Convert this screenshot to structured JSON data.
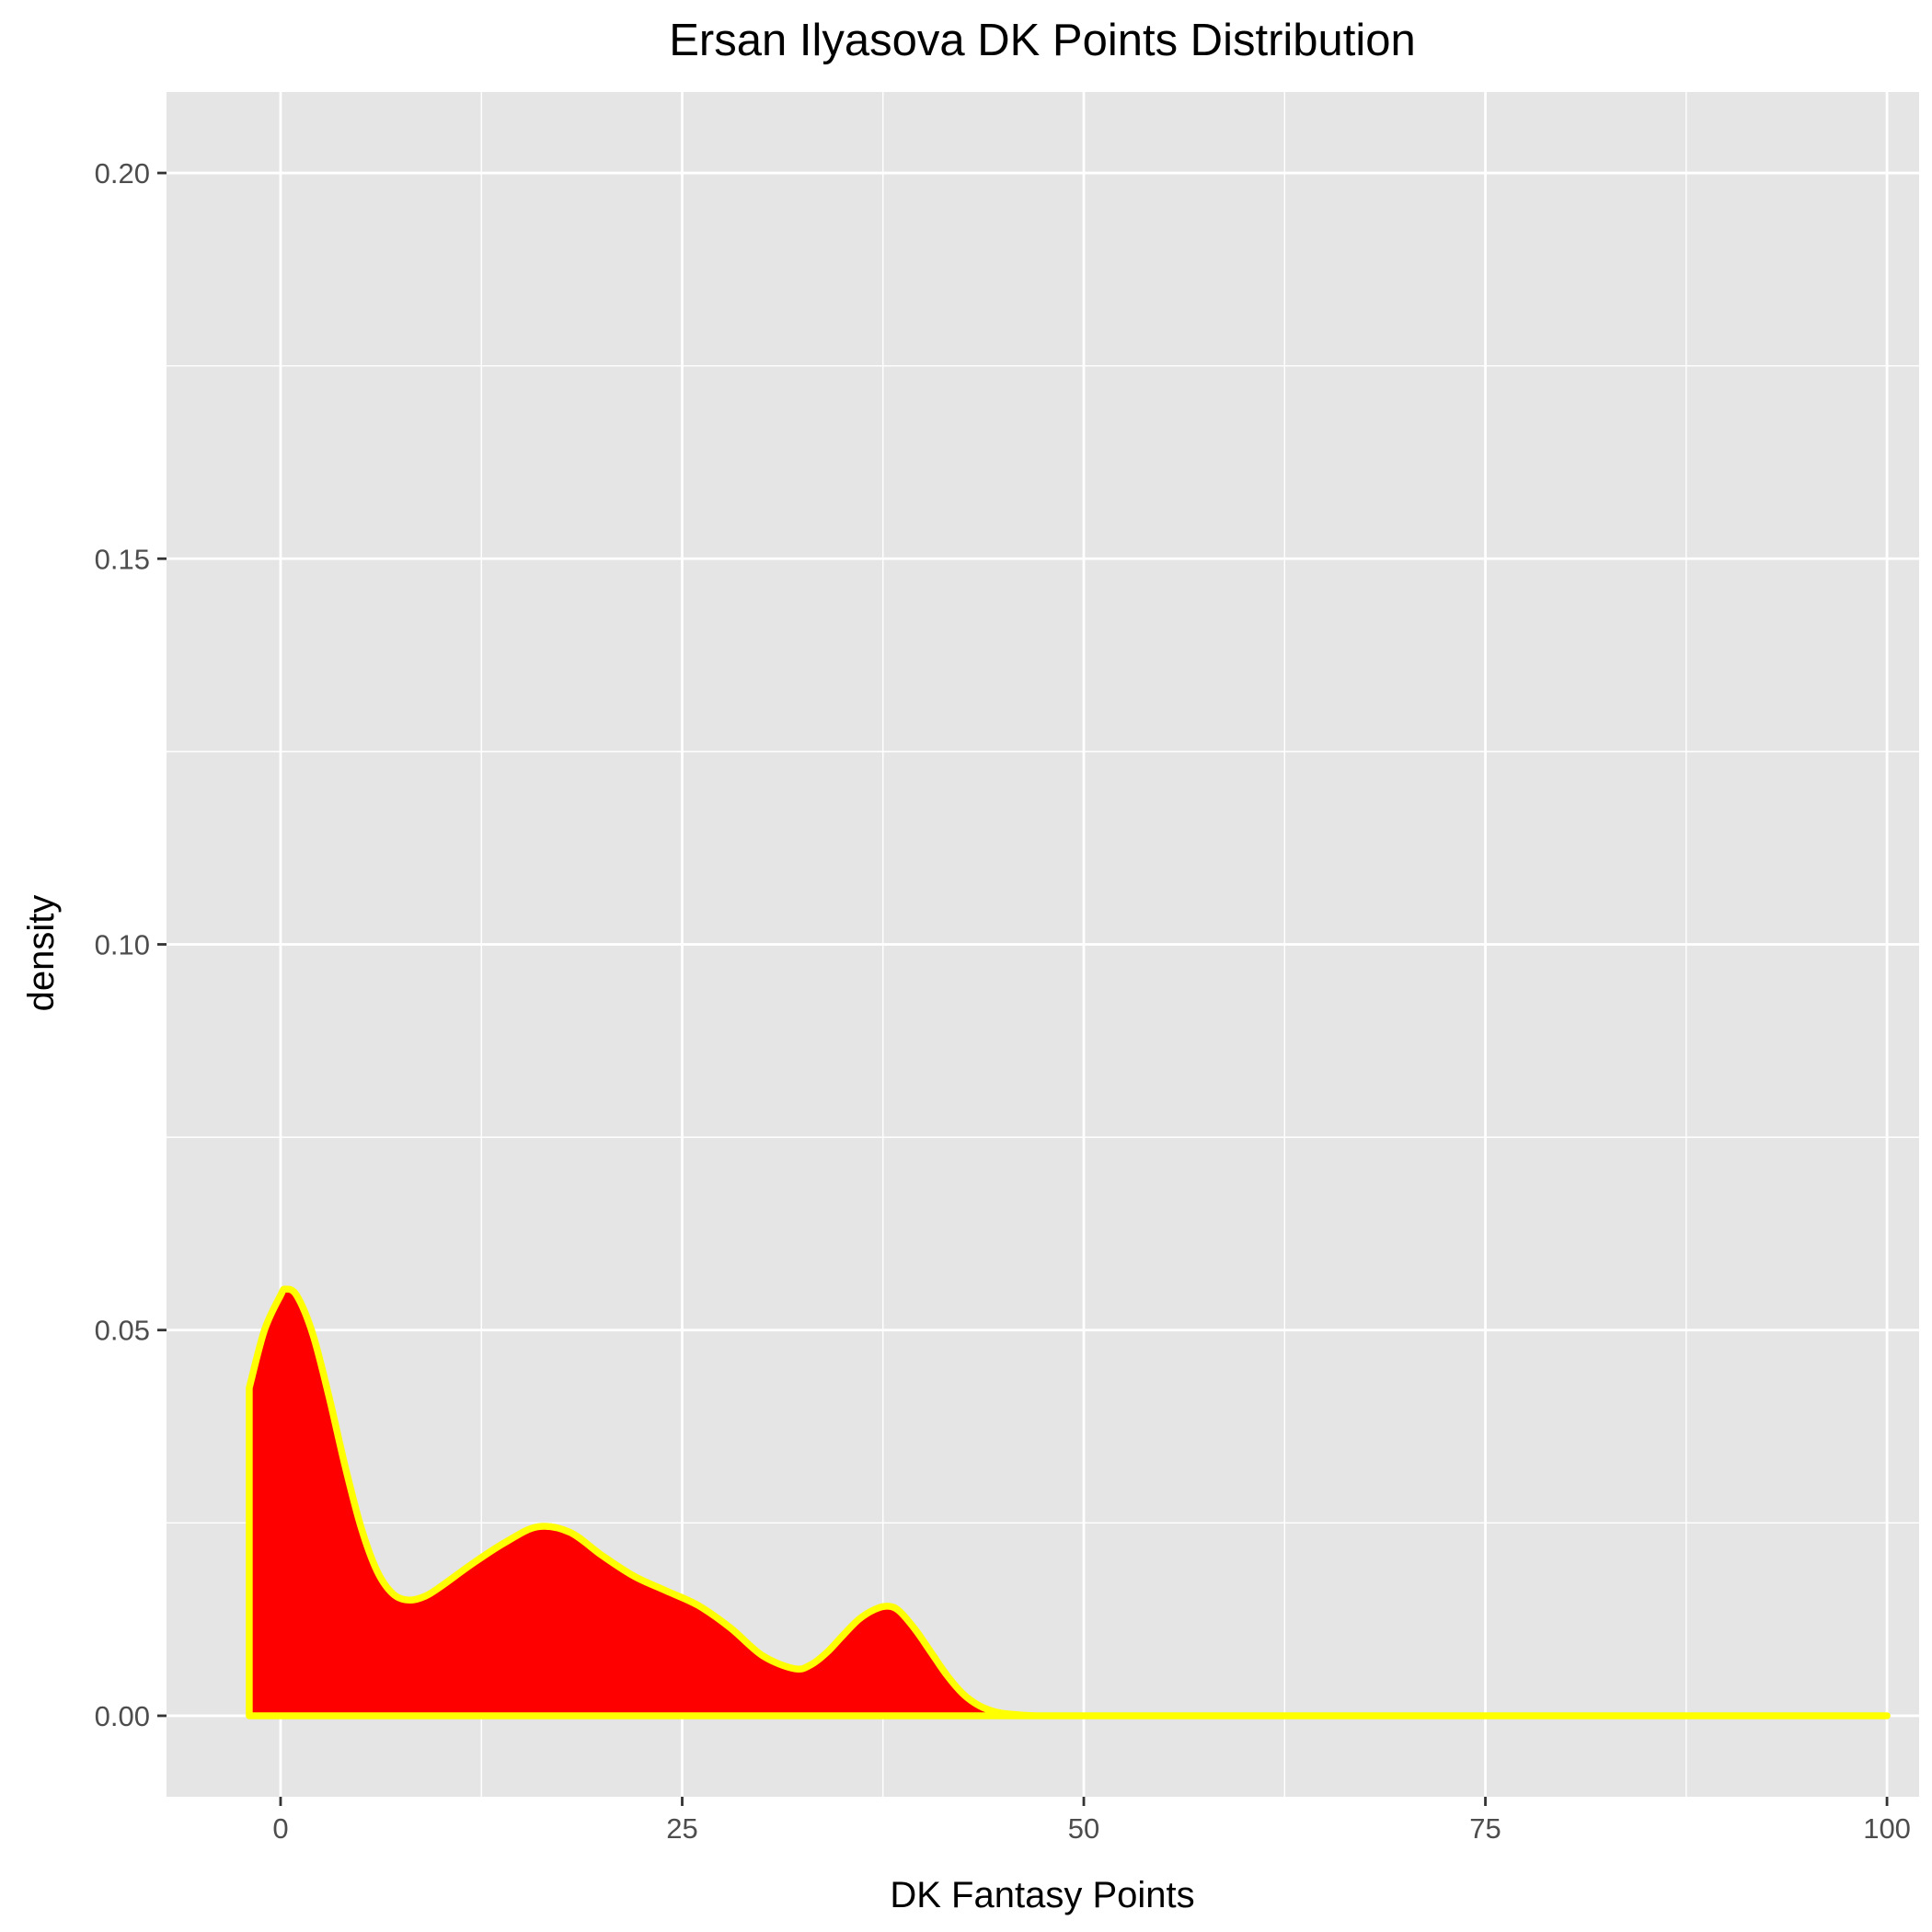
{
  "chart_data": {
    "type": "area",
    "title": "Ersan Ilyasova DK Points Distribution",
    "xlabel": "DK Fantasy Points",
    "ylabel": "density",
    "xlim": [
      -7.1,
      102
    ],
    "ylim": [
      -0.0105,
      0.2105
    ],
    "x_ticks": [
      0,
      25,
      50,
      75,
      100
    ],
    "x_tick_labels": [
      "0",
      "25",
      "50",
      "75",
      "100"
    ],
    "y_ticks": [
      0.0,
      0.05,
      0.1,
      0.15,
      0.2
    ],
    "y_tick_labels": [
      "0.00",
      "0.05",
      "0.10",
      "0.15",
      "0.20"
    ],
    "grid": true,
    "legend": "none",
    "colors": {
      "panel_background": "#e5e5e5",
      "grid": "#ffffff",
      "fill": "#ff0000",
      "outline": "#ffff00"
    },
    "series": [
      {
        "x": [
          -1.95,
          -1,
          0,
          0.3,
          1,
          2,
          3,
          4,
          5,
          6,
          7,
          8,
          9,
          10,
          12,
          14,
          16,
          18,
          20,
          22,
          24,
          26,
          28,
          30,
          32,
          33,
          34,
          35,
          36,
          37,
          37.8,
          38.5,
          39.5,
          40.5,
          41.5,
          42.5,
          43.5,
          44.5,
          45.5,
          47,
          50,
          60,
          75,
          90,
          100
        ],
        "y": [
          0.0425,
          0.05,
          0.0545,
          0.0553,
          0.0545,
          0.0495,
          0.0415,
          0.0325,
          0.0245,
          0.0188,
          0.0158,
          0.015,
          0.0155,
          0.0168,
          0.0198,
          0.0225,
          0.0245,
          0.0238,
          0.0208,
          0.0181,
          0.0162,
          0.0143,
          0.0114,
          0.0078,
          0.0061,
          0.0066,
          0.0082,
          0.0104,
          0.0125,
          0.0138,
          0.0142,
          0.0136,
          0.0112,
          0.0082,
          0.0052,
          0.0028,
          0.0013,
          0.0005,
          0.0002,
          0.0,
          0.0,
          0.0,
          0.0,
          0.0,
          0.0
        ]
      }
    ]
  }
}
